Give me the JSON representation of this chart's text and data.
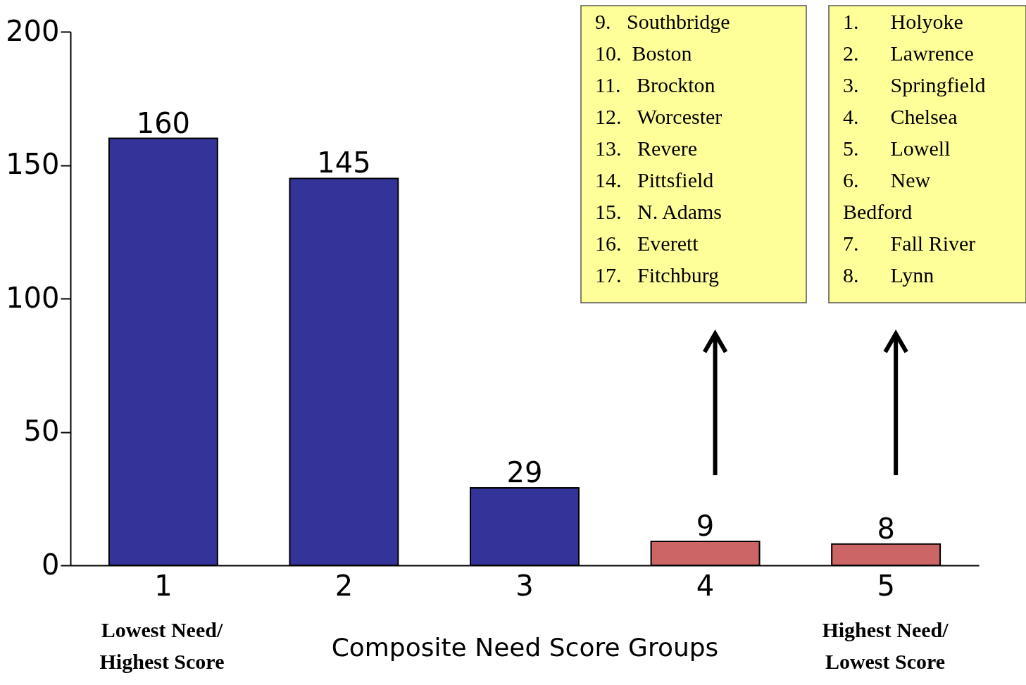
{
  "chart_data": {
    "type": "bar",
    "categories": [
      "1",
      "2",
      "3",
      "4",
      "5"
    ],
    "values": [
      160,
      145,
      29,
      9,
      8
    ],
    "colors": [
      "#333399",
      "#333399",
      "#333399",
      "#cc6666",
      "#cc6666"
    ],
    "data_labels": true,
    "ylim": [
      0,
      200
    ],
    "yticks": [
      0,
      50,
      100,
      150,
      200
    ],
    "grid": false,
    "legend": false,
    "xlabel": "Composite Need Score Groups",
    "annotations": [
      "Lowest Need/\nHighest Score",
      "Highest Need/\nLowest Score",
      "9.   Southbridge\n10.  Boston\n11.   Brockton\n12.   Worcester\n13.   Revere\n14.   Pittsfield\n15.   N. Adams\n16.   Everett\n17.   Fitchburg",
      "1.      Holyoke\n2.      Lawrence\n3.      Springfield\n4.      Chelsea\n5.      Lowell\n6.      New\n         Bedford\n7.      Fall River\n8.      Lynn"
    ]
  }
}
